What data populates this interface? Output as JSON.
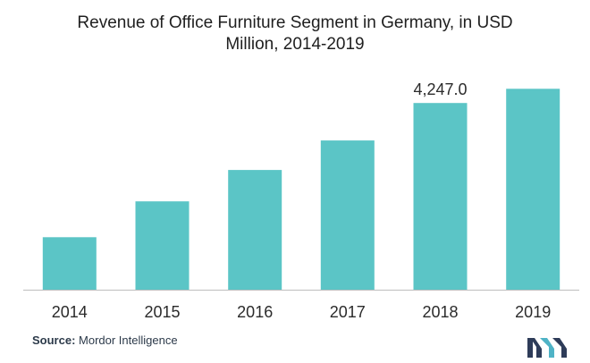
{
  "chart_data": {
    "type": "bar",
    "title_lines": [
      "Revenue of Office Furniture Segment in Germany, in USD",
      "Million,  2014-2019"
    ],
    "categories": [
      "2014",
      "2015",
      "2016",
      "2017",
      "2018",
      "2019"
    ],
    "values": [
      1195,
      2010,
      2723,
      3396,
      4247.0,
      4570
    ],
    "data_labels": [
      null,
      null,
      null,
      null,
      "4,247.0",
      null
    ],
    "bar_color": "#5bc5c6",
    "axis_color": "#bdbdbd",
    "ylim": [
      0,
      4760
    ],
    "grid": false,
    "legend": "none"
  },
  "source": {
    "label": "Source:",
    "text": " Mordor Intelligence"
  },
  "brand": {
    "logo_name": "mordor-intelligence-logo",
    "colors": [
      "#2e3c59",
      "#4fb3c6"
    ]
  }
}
